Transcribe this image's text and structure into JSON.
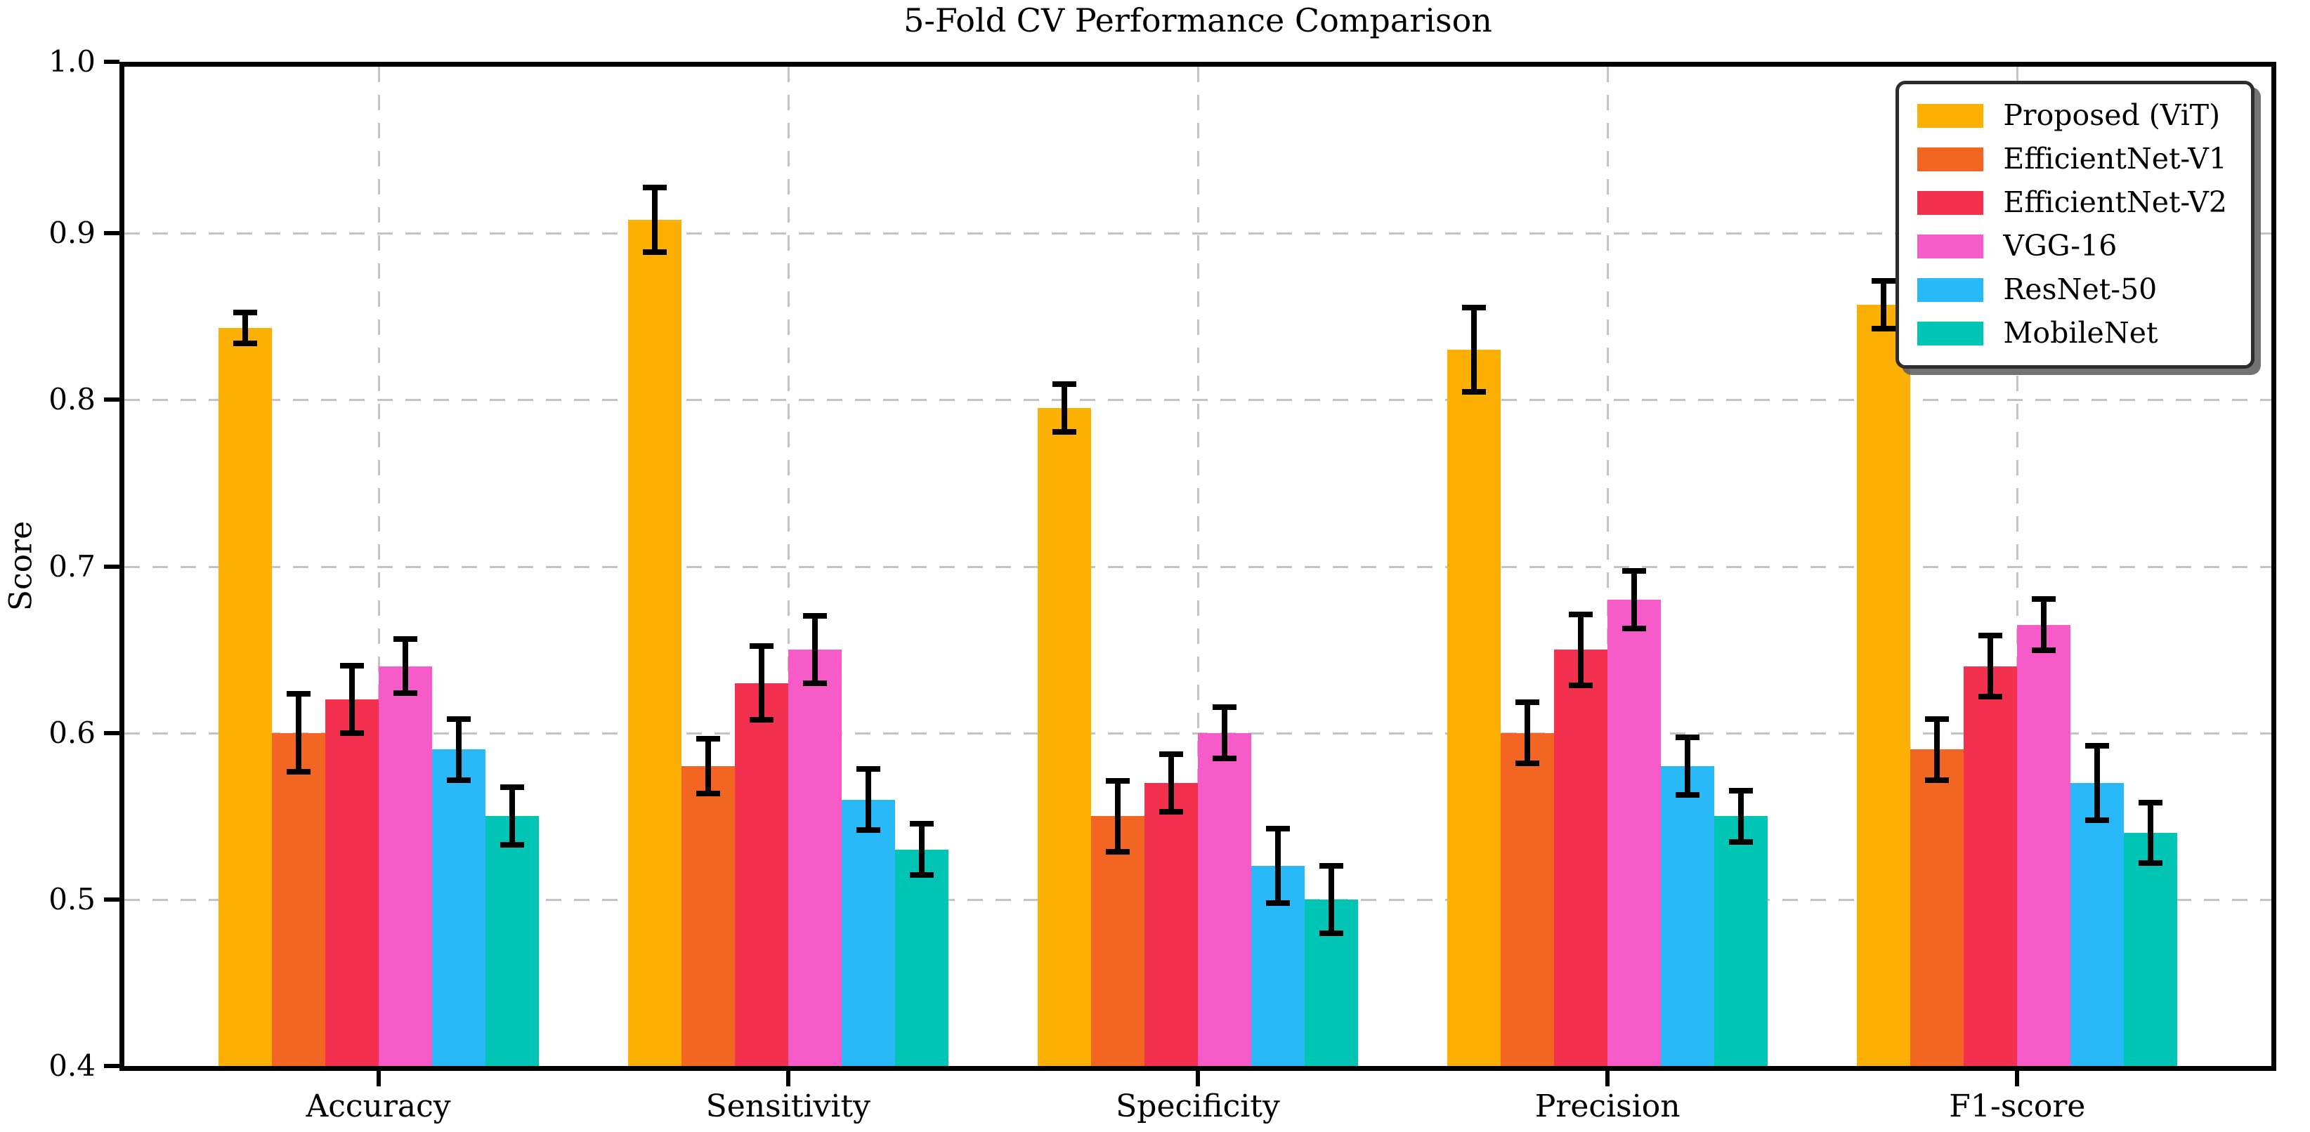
{
  "figure": {
    "title": "5-Fold CV Performance Comparison",
    "ylabel": "Score"
  },
  "chart_data": {
    "type": "bar",
    "title": "5-Fold CV Performance Comparison",
    "xlabel": "",
    "ylabel": "Score",
    "ylim": [
      0.4,
      1.0
    ],
    "yticks": [
      0.4,
      0.5,
      0.6,
      0.7,
      0.8,
      0.9,
      1.0
    ],
    "grid": "dashed, horizontal and vertical, light gray, behind bars",
    "legend_position": "upper right",
    "error_bars": "symmetric, black, capped",
    "axis_color": "#000000",
    "grid_color": "#c4c4c4",
    "categories": [
      "Accuracy",
      "Sensitivity",
      "Specificity",
      "Precision",
      "F1-score"
    ],
    "series": [
      {
        "name": "Proposed (ViT)",
        "color": "#FCB003",
        "values": [
          0.843,
          0.908,
          0.795,
          0.83,
          0.857
        ],
        "errors": [
          0.011,
          0.021,
          0.016,
          0.027,
          0.016
        ]
      },
      {
        "name": "EfficientNet-V1",
        "color": "#F26522",
        "values": [
          0.6,
          0.58,
          0.55,
          0.6,
          0.59
        ],
        "errors": [
          0.025,
          0.018,
          0.023,
          0.02,
          0.02
        ]
      },
      {
        "name": "EfficientNet-V2",
        "color": "#F3304E",
        "values": [
          0.62,
          0.63,
          0.57,
          0.65,
          0.64
        ],
        "errors": [
          0.022,
          0.024,
          0.019,
          0.023,
          0.02
        ]
      },
      {
        "name": "VGG-16",
        "color": "#F65BC7",
        "values": [
          0.64,
          0.65,
          0.6,
          0.68,
          0.665
        ],
        "errors": [
          0.018,
          0.022,
          0.017,
          0.019,
          0.017
        ]
      },
      {
        "name": "ResNet-50",
        "color": "#29B8F8",
        "values": [
          0.59,
          0.56,
          0.52,
          0.58,
          0.57
        ],
        "errors": [
          0.02,
          0.02,
          0.024,
          0.019,
          0.024
        ]
      },
      {
        "name": "MobileNet",
        "color": "#00C5B5",
        "values": [
          0.55,
          0.53,
          0.5,
          0.55,
          0.54
        ],
        "errors": [
          0.019,
          0.017,
          0.022,
          0.017,
          0.02
        ]
      }
    ]
  }
}
